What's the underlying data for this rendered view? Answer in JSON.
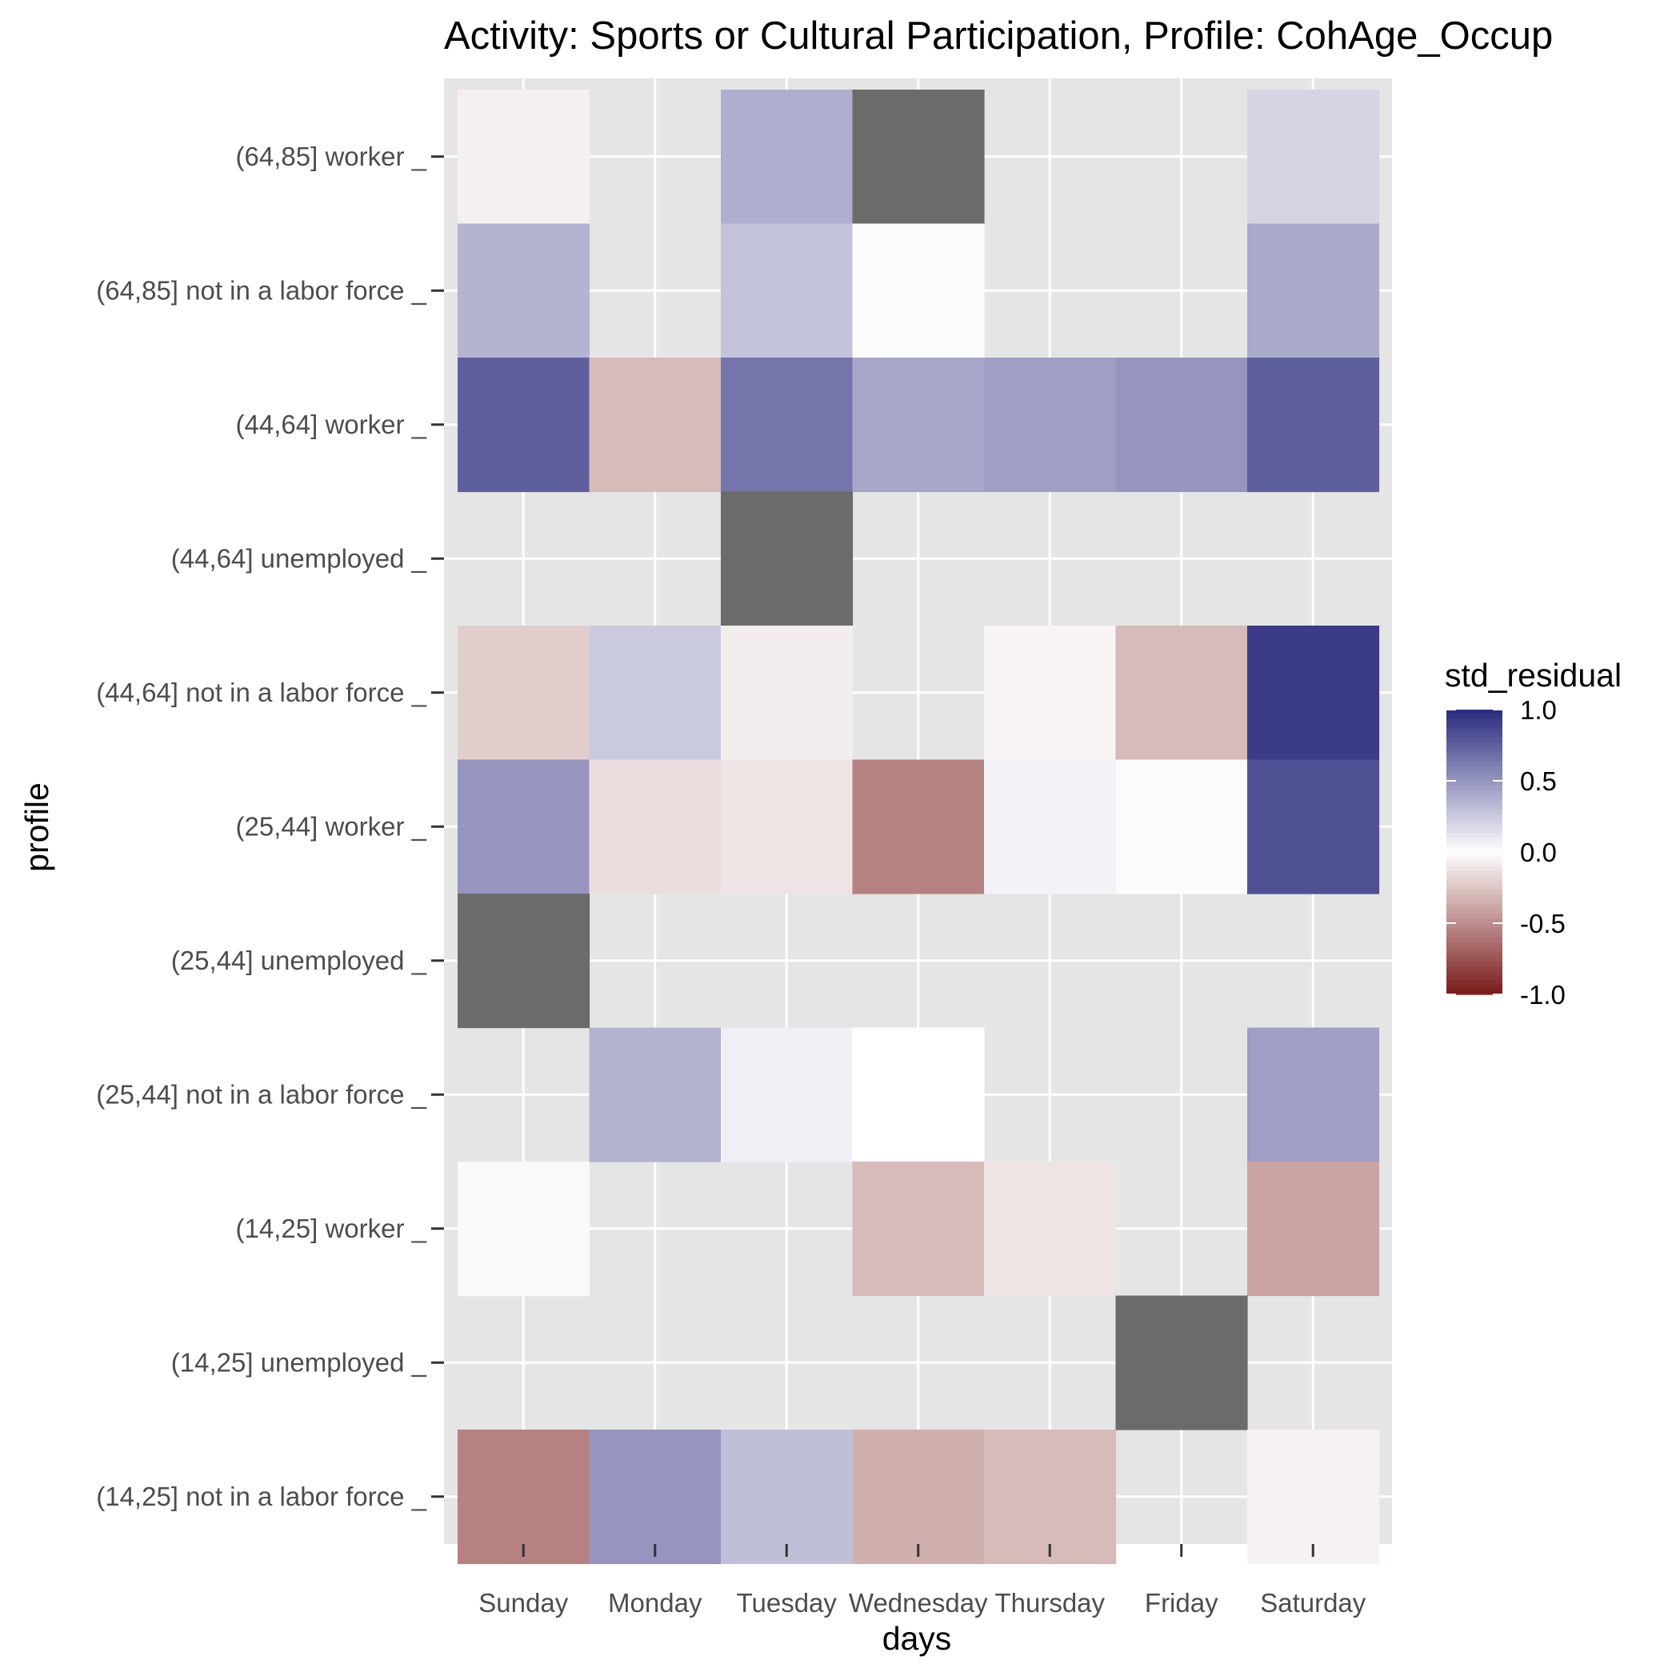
{
  "chart_data": {
    "type": "heatmap",
    "title": "Activity: Sports or Cultural Participation, Profile: CohAge_Occup",
    "xlabel": "days",
    "ylabel": "profile",
    "x_categories": [
      "Sunday",
      "Monday",
      "Tuesday",
      "Wednesday",
      "Thursday",
      "Friday",
      "Saturday"
    ],
    "y_categories": [
      "(64,85] worker _",
      "(64,85] not in a labor force _",
      "(44,64] worker _",
      "(44,64] unemployed _",
      "(44,64] not in a labor force _",
      "(25,44] worker _",
      "(25,44] unemployed _",
      "(25,44] not in a labor force _",
      "(14,25] worker _",
      "(14,25] unemployed _",
      "(14,25] not in a labor force _"
    ],
    "values": [
      [
        -0.07,
        null,
        0.38,
        "NA",
        null,
        null,
        0.2
      ],
      [
        0.35,
        null,
        0.28,
        0.02,
        null,
        null,
        0.4
      ],
      [
        0.75,
        -0.3,
        0.65,
        0.42,
        0.45,
        0.5,
        0.75
      ],
      [
        null,
        null,
        "NA",
        null,
        null,
        null,
        null
      ],
      [
        -0.22,
        0.25,
        -0.08,
        null,
        -0.05,
        -0.3,
        0.92
      ],
      [
        0.5,
        -0.15,
        -0.12,
        -0.55,
        0.06,
        0.02,
        0.82
      ],
      [
        "NA",
        null,
        null,
        null,
        null,
        null,
        null
      ],
      [
        null,
        0.36,
        0.07,
        0.0,
        null,
        null,
        0.45
      ],
      [
        0.03,
        null,
        null,
        -0.3,
        -0.12,
        null,
        -0.4
      ],
      [
        null,
        null,
        null,
        null,
        null,
        "NA",
        null
      ],
      [
        -0.55,
        0.5,
        0.3,
        -0.35,
        -0.3,
        null,
        -0.06
      ]
    ],
    "legend": {
      "title": "std_residual",
      "ticks": [
        "1.0",
        "0.5",
        "0.0",
        "-0.5",
        "-1.0"
      ],
      "range": [
        -1,
        1
      ],
      "low_color": "#67001f",
      "mid_color": "#ffffff",
      "high_color": "#1a1a6e",
      "na_color": "#6b6b6b",
      "placement": "right"
    },
    "colors": {
      "panel_background": "#e5e5e5",
      "grid": "#ffffff",
      "mid": "#ffffff",
      "high": "#2a2a7e",
      "low": "#7a1a1a"
    },
    "grid": true
  }
}
